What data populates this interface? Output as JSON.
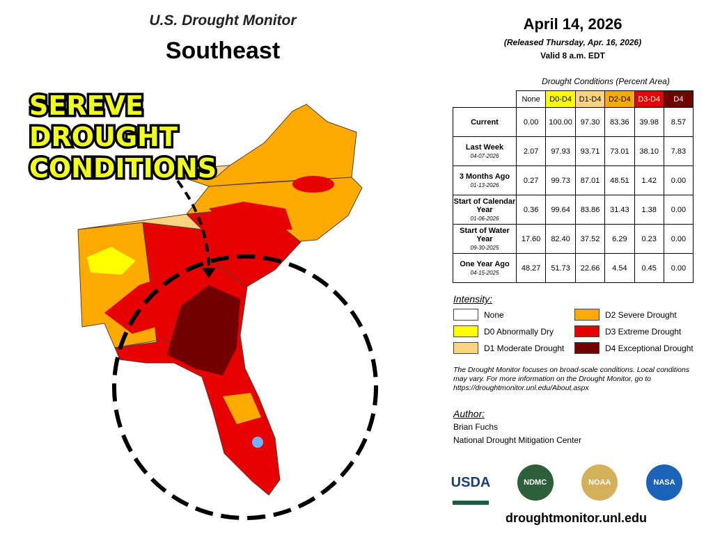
{
  "header": {
    "title": "U.S. Drought Monitor",
    "region": "Southeast"
  },
  "annotation": [
    "SEREVE",
    "DROUGHT",
    "CONDITIONS"
  ],
  "date": {
    "date": "April 14, 2026",
    "released": "(Released Thursday, Apr. 16, 2026)",
    "valid": "Valid 8 a.m. EDT"
  },
  "table": {
    "caption": "Drought Conditions (Percent Area)",
    "columns": [
      {
        "label": "None",
        "color": "#ffffff",
        "text_color": "#000000"
      },
      {
        "label": "D0-D4",
        "color": "#ffff00",
        "text_color": "#000000"
      },
      {
        "label": "D1-D4",
        "color": "#fcd37f",
        "text_color": "#000000"
      },
      {
        "label": "D2-D4",
        "color": "#ffaa00",
        "text_color": "#000000"
      },
      {
        "label": "D3-D4",
        "color": "#e60000",
        "text_color": "#ffffff"
      },
      {
        "label": "D4",
        "color": "#730000",
        "text_color": "#ffffff"
      }
    ],
    "rows": [
      {
        "label": "Current",
        "values": [
          "0.00",
          "100.00",
          "97.30",
          "83.36",
          "39.98",
          "8.57"
        ]
      },
      {
        "label": "Last Week",
        "date": "04-07-2026",
        "values": [
          "2.07",
          "97.93",
          "93.71",
          "73.01",
          "38.10",
          "7.83"
        ]
      },
      {
        "label": "3 Months Ago",
        "date": "01-13-2026",
        "values": [
          "0.27",
          "99.73",
          "87.01",
          "48.51",
          "1.42",
          "0.00"
        ]
      },
      {
        "label": "Start of Calendar Year",
        "date": "01-06-2026",
        "values": [
          "0.36",
          "99.64",
          "83.86",
          "31.43",
          "1.38",
          "0.00"
        ]
      },
      {
        "label": "Start of Water Year",
        "date": "09-30-2025",
        "values": [
          "17.60",
          "82.40",
          "37.52",
          "6.29",
          "0.23",
          "0.00"
        ]
      },
      {
        "label": "One Year Ago",
        "date": "04-15-2025",
        "values": [
          "48.27",
          "51.73",
          "22.66",
          "4.54",
          "0.45",
          "0.00"
        ]
      }
    ]
  },
  "legend": {
    "title": "Intensity:",
    "items": [
      {
        "label": "None",
        "color": "#ffffff"
      },
      {
        "label": "D0 Abnormally Dry",
        "color": "#ffff00"
      },
      {
        "label": "D1 Moderate Drought",
        "color": "#fcd37f"
      },
      {
        "label": "D2 Severe Drought",
        "color": "#ffaa00"
      },
      {
        "label": "D3 Extreme Drought",
        "color": "#e60000"
      },
      {
        "label": "D4 Exceptional Drought",
        "color": "#730000"
      }
    ]
  },
  "note": "The Drought Monitor focuses on broad-scale conditions. Local conditions may vary. For more information on the Drought Monitor, go to https://droughtmonitor.unl.edu/About.aspx",
  "author": {
    "title": "Author:",
    "lines": [
      "Brian Fuchs",
      "National Drought Mitigation Center"
    ]
  },
  "logos": [
    "USDA",
    "NDMC",
    "NOAA",
    "NASA"
  ],
  "url": "droughtmonitor.unl.edu"
}
